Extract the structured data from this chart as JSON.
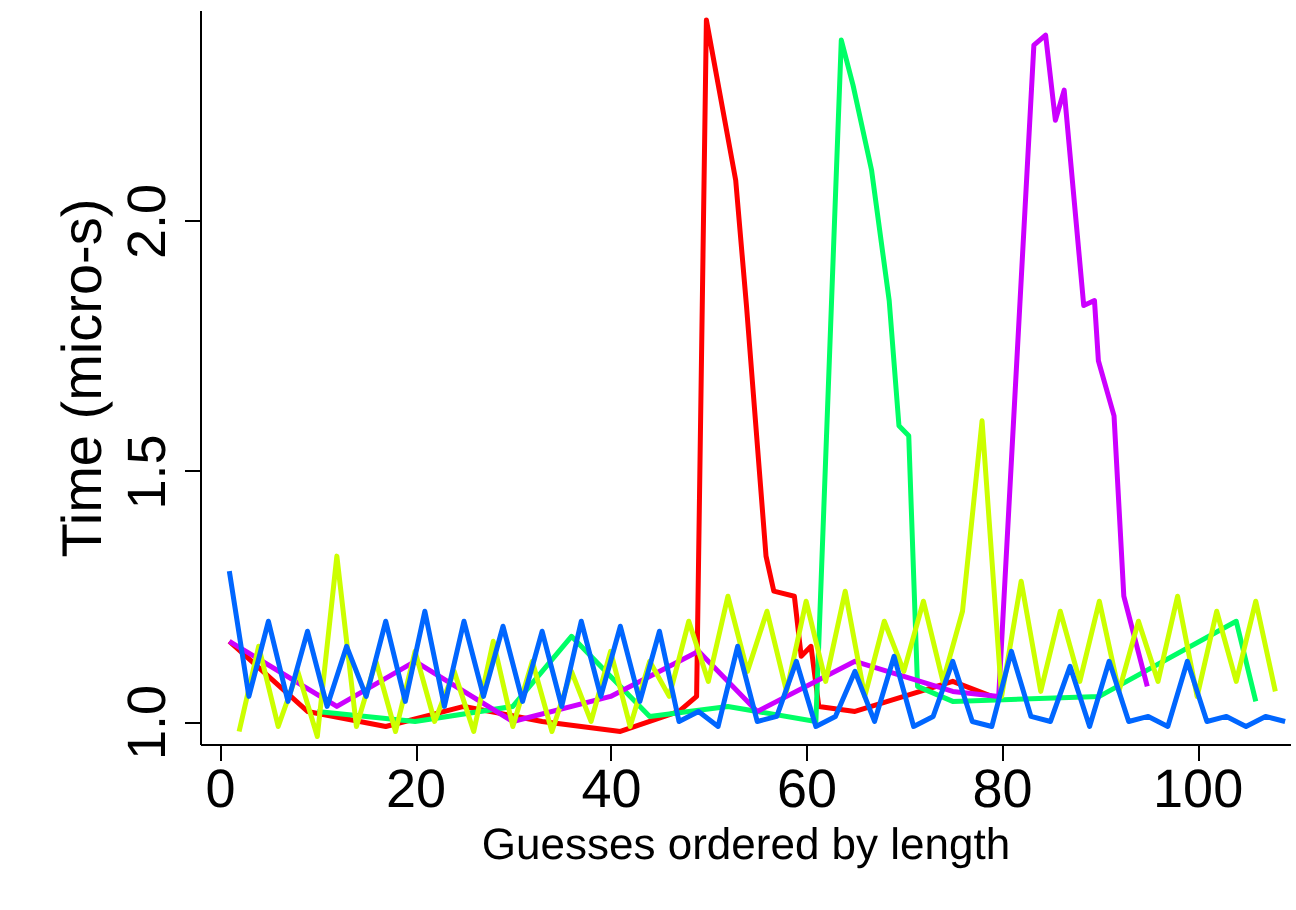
{
  "chart_data": {
    "type": "line",
    "xlabel": "Guesses ordered by length",
    "ylabel": "Time (micro-s)",
    "xlim": [
      -2,
      109.5
    ],
    "ylim": [
      0.955,
      2.42
    ],
    "xticks": [
      0,
      20,
      40,
      60,
      80,
      100
    ],
    "yticks": [
      {
        "value": 1,
        "label": "1.0"
      },
      1.5,
      {
        "value": 2,
        "label": "2.0"
      }
    ],
    "grid": false,
    "series": [
      {
        "color": "#ff0000",
        "x": [
          1,
          9,
          17,
          25,
          33,
          41,
          47,
          48.8,
          49.8,
          52.8,
          53.9,
          55.9,
          56.7,
          58.8,
          59.5,
          60.5,
          61.3,
          65,
          75,
          79
        ],
        "values": [
          1.16,
          1.02,
          0.99,
          1.03,
          1.0,
          0.98,
          1.02,
          1.05,
          2.4,
          2.08,
          1.83,
          1.33,
          1.26,
          1.25,
          1.13,
          1.15,
          1.03,
          1.02,
          1.08,
          1.05
        ]
      },
      {
        "color": "#00ff66",
        "x": [
          10,
          20,
          30,
          36,
          44,
          52,
          61,
          63.6,
          64.8,
          66.7,
          68.5,
          69.5,
          70.5,
          71.4,
          75,
          90,
          104,
          106
        ],
        "values": [
          1.02,
          1.0,
          1.03,
          1.17,
          1.01,
          1.03,
          1.0,
          2.36,
          2.27,
          2.1,
          1.84,
          1.59,
          1.57,
          1.07,
          1.04,
          1.05,
          1.2,
          1.04
        ]
      },
      {
        "color": "#cc00ff",
        "x": [
          1,
          12,
          20,
          30,
          40,
          49,
          55,
          65,
          75,
          79.7,
          83.3,
          84.5,
          85.5,
          86.4,
          88.4,
          89.5,
          89.9,
          91.5,
          92.5,
          94.9
        ],
        "values": [
          1.16,
          1.03,
          1.12,
          1.0,
          1.05,
          1.14,
          1.02,
          1.12,
          1.06,
          1.05,
          2.35,
          2.37,
          2.2,
          2.26,
          1.83,
          1.84,
          1.72,
          1.61,
          1.25,
          1.07
        ]
      },
      {
        "color": "#ccff00",
        "x": [
          2,
          4,
          6,
          8,
          10,
          12,
          14,
          16,
          18,
          20,
          22,
          24,
          26,
          28,
          30,
          32,
          34,
          36,
          38,
          40,
          42,
          44,
          46,
          48,
          50,
          52,
          54,
          56,
          58,
          60,
          62,
          64,
          66,
          68,
          70,
          72,
          74,
          76,
          78,
          80,
          82,
          84,
          86,
          88,
          90,
          92,
          94,
          96,
          98,
          100,
          102,
          104,
          106,
          108
        ],
        "values": [
          0.98,
          1.15,
          0.99,
          1.1,
          0.97,
          1.33,
          0.99,
          1.12,
          0.98,
          1.14,
          1.0,
          1.1,
          0.98,
          1.16,
          0.99,
          1.12,
          0.98,
          1.1,
          1.0,
          1.14,
          0.99,
          1.12,
          1.05,
          1.2,
          1.08,
          1.25,
          1.1,
          1.22,
          1.06,
          1.24,
          1.08,
          1.26,
          1.05,
          1.2,
          1.1,
          1.24,
          1.08,
          1.22,
          1.6,
          1.05,
          1.28,
          1.06,
          1.22,
          1.08,
          1.24,
          1.06,
          1.2,
          1.08,
          1.25,
          1.05,
          1.22,
          1.08,
          1.24,
          1.06
        ]
      },
      {
        "color": "#0066ff",
        "x": [
          1,
          3,
          5,
          7,
          9,
          11,
          13,
          15,
          17,
          19,
          21,
          23,
          25,
          27,
          29,
          31,
          33,
          35,
          37,
          39,
          41,
          43,
          45,
          47,
          49,
          51,
          53,
          55,
          57,
          59,
          61,
          63,
          65,
          67,
          69,
          71,
          73,
          75,
          77,
          79,
          81,
          83,
          85,
          87,
          89,
          91,
          93,
          95,
          97,
          99,
          101,
          103,
          105,
          107,
          109
        ],
        "values": [
          1.3,
          1.05,
          1.2,
          1.04,
          1.18,
          1.03,
          1.15,
          1.05,
          1.2,
          1.04,
          1.22,
          1.03,
          1.2,
          1.05,
          1.19,
          1.04,
          1.18,
          1.03,
          1.2,
          1.05,
          1.19,
          1.04,
          1.18,
          1.0,
          1.02,
          0.99,
          1.15,
          1.0,
          1.01,
          1.12,
          0.99,
          1.01,
          1.1,
          1.0,
          1.13,
          0.99,
          1.01,
          1.12,
          1.0,
          0.99,
          1.14,
          1.01,
          1.0,
          1.11,
          0.99,
          1.12,
          1.0,
          1.01,
          0.99,
          1.12,
          1.0,
          1.01,
          0.99,
          1.01,
          1.0
        ]
      }
    ]
  }
}
